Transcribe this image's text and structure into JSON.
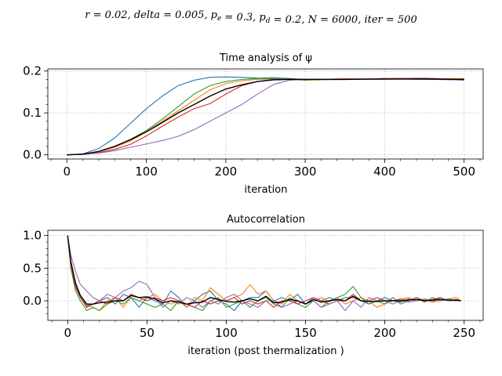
{
  "suptitle": "r = 0.02, delta = 0.005, p_e = 0.3, p_d = 0.2, N = 6000, iter = 500",
  "chart_data": [
    {
      "type": "line",
      "title": "Time analysis of ψ",
      "xlabel": "iteration",
      "ylabel": "",
      "xlim": [
        -24,
        524
      ],
      "ylim": [
        -0.01,
        0.205
      ],
      "xticks": [
        0,
        100,
        200,
        300,
        400,
        500
      ],
      "yticks": [
        0.0,
        0.1,
        0.2
      ],
      "ytick_labels": [
        "0.0",
        "0.1",
        "0.2"
      ],
      "grid": true,
      "series": [
        {
          "color": "#1f77b4",
          "x": [
            0,
            20,
            40,
            60,
            80,
            100,
            120,
            140,
            160,
            180,
            200,
            220,
            240,
            260,
            280,
            300,
            350,
            400,
            450,
            500
          ],
          "values": [
            0,
            0.002,
            0.015,
            0.04,
            0.075,
            0.11,
            0.14,
            0.165,
            0.178,
            0.185,
            0.186,
            0.185,
            0.183,
            0.184,
            0.182,
            0.18,
            0.181,
            0.181,
            0.18,
            0.179
          ]
        },
        {
          "color": "#ff7f0e",
          "x": [
            0,
            20,
            40,
            60,
            80,
            100,
            120,
            140,
            160,
            180,
            200,
            220,
            240,
            260,
            280,
            300,
            350,
            400,
            450,
            500
          ],
          "values": [
            0,
            0.001,
            0.007,
            0.018,
            0.033,
            0.055,
            0.08,
            0.105,
            0.13,
            0.155,
            0.17,
            0.177,
            0.18,
            0.181,
            0.18,
            0.178,
            0.182,
            0.18,
            0.181,
            0.182
          ]
        },
        {
          "color": "#2ca02c",
          "x": [
            0,
            20,
            40,
            60,
            80,
            100,
            120,
            140,
            160,
            180,
            200,
            220,
            240,
            260,
            280,
            300,
            350,
            400,
            450,
            500
          ],
          "values": [
            0,
            0.001,
            0.008,
            0.02,
            0.037,
            0.058,
            0.085,
            0.115,
            0.145,
            0.165,
            0.175,
            0.18,
            0.182,
            0.182,
            0.18,
            0.179,
            0.18,
            0.182,
            0.18,
            0.18
          ]
        },
        {
          "color": "#d62728",
          "x": [
            0,
            20,
            40,
            60,
            80,
            100,
            120,
            140,
            160,
            180,
            200,
            220,
            240,
            260,
            280,
            300,
            350,
            400,
            450,
            500
          ],
          "values": [
            0,
            0.001,
            0.005,
            0.013,
            0.025,
            0.045,
            0.068,
            0.09,
            0.11,
            0.122,
            0.145,
            0.165,
            0.175,
            0.18,
            0.181,
            0.18,
            0.18,
            0.182,
            0.183,
            0.18
          ]
        },
        {
          "color": "#9467bd",
          "x": [
            0,
            20,
            40,
            60,
            80,
            100,
            120,
            140,
            160,
            180,
            200,
            220,
            240,
            260,
            280,
            300,
            350,
            400,
            450,
            500
          ],
          "values": [
            0,
            0.001,
            0.004,
            0.01,
            0.018,
            0.026,
            0.034,
            0.044,
            0.06,
            0.08,
            0.1,
            0.12,
            0.145,
            0.168,
            0.178,
            0.18,
            0.181,
            0.18,
            0.182,
            0.178
          ]
        },
        {
          "color": "#000000",
          "x": [
            0,
            20,
            40,
            60,
            80,
            100,
            120,
            140,
            160,
            180,
            200,
            220,
            240,
            260,
            280,
            300,
            350,
            400,
            450,
            500
          ],
          "values": [
            0,
            0.0015,
            0.008,
            0.02,
            0.036,
            0.055,
            0.077,
            0.1,
            0.12,
            0.14,
            0.157,
            0.167,
            0.175,
            0.179,
            0.18,
            0.18,
            0.18,
            0.181,
            0.181,
            0.18
          ]
        }
      ]
    },
    {
      "type": "line",
      "title": "Autocorrelation",
      "xlabel": "iteration (post thermalization )",
      "ylabel": "",
      "xlim": [
        -12.5,
        262
      ],
      "ylim": [
        -0.3,
        1.08
      ],
      "xticks": [
        0,
        50,
        100,
        150,
        200,
        250
      ],
      "yticks": [
        0.0,
        0.5,
        1.0
      ],
      "ytick_labels": [
        "0.0",
        "0.5",
        "1.0"
      ],
      "grid": true,
      "series": [
        {
          "color": "#1f77b4",
          "x": [
            0,
            2,
            5,
            8,
            12,
            16,
            20,
            25,
            30,
            35,
            40,
            45,
            50,
            55,
            60,
            65,
            70,
            75,
            80,
            85,
            90,
            95,
            100,
            105,
            110,
            115,
            120,
            125,
            130,
            135,
            140,
            145,
            150,
            155,
            160,
            165,
            170,
            175,
            180,
            185,
            190,
            195,
            200,
            205,
            210,
            215,
            220,
            225,
            230,
            235,
            240,
            245,
            248
          ],
          "values": [
            1.0,
            0.6,
            0.25,
            0.05,
            -0.08,
            -0.05,
            0.0,
            0.05,
            -0.05,
            0.1,
            0.05,
            -0.1,
            0.05,
            0.0,
            -0.05,
            0.15,
            0.05,
            -0.1,
            0.0,
            0.1,
            0.15,
            0.0,
            -0.05,
            -0.15,
            0.0,
            0.05,
            0.05,
            0.15,
            0.0,
            0.05,
            0.0,
            0.1,
            -0.05,
            0.05,
            0.0,
            0.05,
            0.0,
            0.05,
            0.05,
            0.0,
            -0.05,
            0.0,
            0.05,
            0.0,
            -0.02,
            0.03,
            0.0,
            0.02,
            -0.02,
            0.05,
            0.0,
            0.02,
            0.0
          ]
        },
        {
          "color": "#ff7f0e",
          "x": [
            0,
            2,
            5,
            8,
            12,
            16,
            20,
            25,
            30,
            35,
            40,
            45,
            50,
            55,
            60,
            65,
            70,
            75,
            80,
            85,
            90,
            95,
            100,
            105,
            110,
            115,
            120,
            125,
            130,
            135,
            140,
            145,
            150,
            155,
            160,
            165,
            170,
            175,
            180,
            185,
            190,
            195,
            200,
            205,
            210,
            215,
            220,
            225,
            230,
            235,
            240,
            245,
            248
          ],
          "values": [
            1.0,
            0.55,
            0.2,
            0.05,
            -0.05,
            -0.1,
            -0.15,
            0.0,
            0.05,
            -0.1,
            0.05,
            0.0,
            0.05,
            0.1,
            0.0,
            -0.05,
            0.0,
            -0.1,
            0.05,
            0.0,
            0.2,
            0.1,
            0.0,
            0.05,
            0.1,
            0.25,
            0.1,
            0.15,
            0.0,
            -0.05,
            0.1,
            0.0,
            -0.05,
            0.0,
            0.05,
            -0.02,
            0.05,
            -0.05,
            0.0,
            0.05,
            0.0,
            -0.1,
            -0.05,
            0.0,
            0.02,
            0.05,
            0.0,
            0.02,
            -0.02,
            0.0,
            0.03,
            0.05,
            0.0
          ]
        },
        {
          "color": "#2ca02c",
          "x": [
            0,
            2,
            5,
            8,
            12,
            16,
            20,
            25,
            30,
            35,
            40,
            45,
            50,
            55,
            60,
            65,
            70,
            75,
            80,
            85,
            90,
            95,
            100,
            105,
            110,
            115,
            120,
            125,
            130,
            135,
            140,
            145,
            150,
            155,
            160,
            165,
            170,
            175,
            180,
            185,
            190,
            195,
            200,
            205,
            210,
            215,
            220,
            225,
            230,
            235,
            240,
            245,
            248
          ],
          "values": [
            1.0,
            0.5,
            0.15,
            0.0,
            -0.15,
            -0.1,
            -0.15,
            -0.05,
            0.0,
            -0.05,
            0.05,
            0.0,
            -0.05,
            -0.1,
            -0.05,
            -0.15,
            0.0,
            -0.05,
            -0.1,
            -0.15,
            0.0,
            0.05,
            -0.1,
            -0.05,
            0.0,
            -0.1,
            0.0,
            0.05,
            -0.05,
            -0.1,
            0.05,
            -0.05,
            -0.1,
            0.0,
            -0.1,
            0.0,
            0.05,
            0.1,
            0.22,
            0.05,
            -0.05,
            0.0,
            -0.05,
            0.05,
            -0.05,
            0.0,
            0.05,
            -0.02,
            0.05,
            0.0,
            0.03,
            0.0,
            0.0
          ]
        },
        {
          "color": "#d62728",
          "x": [
            0,
            2,
            5,
            8,
            12,
            16,
            20,
            25,
            30,
            35,
            40,
            45,
            50,
            55,
            60,
            65,
            70,
            75,
            80,
            85,
            90,
            95,
            100,
            105,
            110,
            115,
            120,
            125,
            130,
            135,
            140,
            145,
            150,
            155,
            160,
            165,
            170,
            175,
            180,
            185,
            190,
            195,
            200,
            205,
            210,
            215,
            220,
            225,
            230,
            235,
            240,
            245,
            248
          ],
          "values": [
            1.0,
            0.55,
            0.2,
            0.05,
            -0.1,
            -0.05,
            0.0,
            -0.05,
            0.05,
            0.0,
            0.1,
            0.05,
            0.0,
            0.05,
            0.0,
            0.05,
            0.0,
            -0.05,
            -0.1,
            0.0,
            -0.05,
            0.0,
            0.0,
            0.05,
            -0.05,
            0.0,
            -0.05,
            0.0,
            -0.1,
            0.0,
            0.0,
            -0.05,
            0.0,
            0.05,
            0.0,
            -0.05,
            0.0,
            0.0,
            0.1,
            0.0,
            0.0,
            0.05,
            0.0,
            0.0,
            0.03,
            0.0,
            0.05,
            0.0,
            0.02,
            0.05,
            0.0,
            0.02,
            0.0
          ]
        },
        {
          "color": "#9467bd",
          "x": [
            0,
            2,
            5,
            8,
            12,
            16,
            20,
            25,
            30,
            35,
            40,
            45,
            50,
            55,
            60,
            65,
            70,
            75,
            80,
            85,
            90,
            95,
            100,
            105,
            110,
            115,
            120,
            125,
            130,
            135,
            140,
            145,
            150,
            155,
            160,
            165,
            170,
            175,
            180,
            185,
            190,
            195,
            200,
            205,
            210,
            215,
            220,
            225,
            230,
            235,
            240,
            245,
            248
          ],
          "values": [
            1.0,
            0.7,
            0.45,
            0.25,
            0.15,
            0.05,
            0.0,
            0.1,
            0.05,
            0.15,
            0.2,
            0.3,
            0.25,
            0.05,
            -0.1,
            0.0,
            -0.05,
            0.05,
            0.0,
            -0.1,
            0.0,
            -0.05,
            0.05,
            0.1,
            0.0,
            -0.05,
            -0.1,
            0.0,
            0.0,
            -0.1,
            -0.05,
            0.0,
            -0.05,
            0.0,
            -0.1,
            -0.05,
            0.0,
            -0.15,
            0.0,
            -0.1,
            0.05,
            0.0,
            0.0,
            -0.05,
            0.0,
            -0.02,
            0.0,
            0.03,
            0.0,
            0.02,
            0.0,
            0.0,
            0.0
          ]
        },
        {
          "color": "#000000",
          "x": [
            0,
            2,
            5,
            8,
            12,
            16,
            20,
            25,
            30,
            35,
            40,
            45,
            50,
            55,
            60,
            65,
            70,
            75,
            80,
            85,
            90,
            95,
            100,
            105,
            110,
            115,
            120,
            125,
            130,
            135,
            140,
            145,
            150,
            155,
            160,
            165,
            170,
            175,
            180,
            185,
            190,
            195,
            200,
            205,
            210,
            215,
            220,
            225,
            230,
            235,
            240,
            245,
            248
          ],
          "values": [
            1.0,
            0.6,
            0.27,
            0.08,
            -0.05,
            -0.05,
            -0.03,
            -0.02,
            0.0,
            0.0,
            0.08,
            0.05,
            0.06,
            0.03,
            -0.03,
            0.0,
            -0.02,
            -0.05,
            -0.03,
            -0.02,
            0.05,
            0.02,
            -0.01,
            -0.02,
            0.0,
            0.03,
            0.0,
            0.07,
            -0.03,
            -0.02,
            0.02,
            0.0,
            -0.05,
            0.02,
            -0.02,
            0.0,
            0.02,
            0.0,
            0.07,
            0.0,
            -0.01,
            -0.01,
            0.0,
            0.0,
            0.0,
            0.01,
            0.02,
            0.0,
            0.01,
            0.02,
            0.01,
            0.01,
            0.0
          ]
        }
      ]
    }
  ]
}
